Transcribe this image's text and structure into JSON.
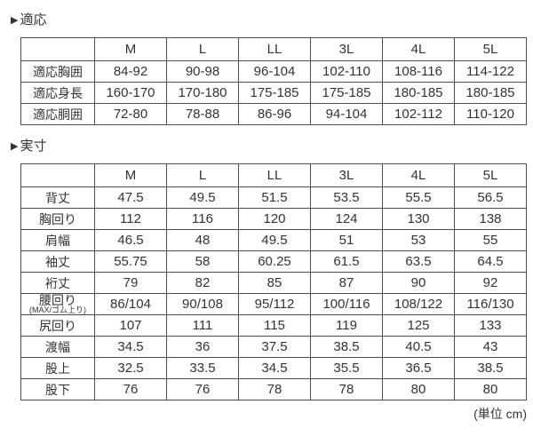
{
  "bullet": "▶",
  "unit_note": "(単位 cm)",
  "colors": {
    "background": "#ffffff",
    "text": "#333333",
    "border": "#4d4d4d"
  },
  "tables": [
    {
      "name": "fit",
      "title": "適応",
      "sizes": [
        "M",
        "L",
        "LL",
        "3L",
        "4L",
        "5L"
      ],
      "rows": [
        {
          "label": "適応胸囲",
          "values": [
            "84-92",
            "90-98",
            "96-104",
            "102-110",
            "108-116",
            "114-122"
          ]
        },
        {
          "label": "適応身長",
          "values": [
            "160-170",
            "170-180",
            "175-185",
            "175-185",
            "180-185",
            "180-185"
          ]
        },
        {
          "label": "適応胴囲",
          "values": [
            "72-80",
            "78-88",
            "86-96",
            "94-104",
            "102-112",
            "110-120"
          ]
        }
      ]
    },
    {
      "name": "actual",
      "title": "実寸",
      "sizes": [
        "M",
        "L",
        "LL",
        "3L",
        "4L",
        "5L"
      ],
      "rows": [
        {
          "label": "背丈",
          "values": [
            "47.5",
            "49.5",
            "51.5",
            "53.5",
            "55.5",
            "56.5"
          ]
        },
        {
          "label": "胸回り",
          "values": [
            "112",
            "116",
            "120",
            "124",
            "130",
            "138"
          ]
        },
        {
          "label": "肩幅",
          "values": [
            "46.5",
            "48",
            "49.5",
            "51",
            "53",
            "55"
          ]
        },
        {
          "label": "袖丈",
          "values": [
            "55.75",
            "58",
            "60.25",
            "61.5",
            "63.5",
            "64.5"
          ]
        },
        {
          "label": "裄丈",
          "values": [
            "79",
            "82",
            "85",
            "87",
            "90",
            "92"
          ]
        },
        {
          "label": "腰回り",
          "sublabel": "(MAX/ゴム上り)",
          "values": [
            "86/104",
            "90/108",
            "95/112",
            "100/116",
            "108/122",
            "116/130"
          ]
        },
        {
          "label": "尻回り",
          "values": [
            "107",
            "111",
            "115",
            "119",
            "125",
            "133"
          ]
        },
        {
          "label": "渡幅",
          "values": [
            "34.5",
            "36",
            "37.5",
            "38.5",
            "40.5",
            "43"
          ]
        },
        {
          "label": "股上",
          "values": [
            "32.5",
            "33.5",
            "34.5",
            "35.5",
            "36.5",
            "38.5"
          ]
        },
        {
          "label": "股下",
          "values": [
            "76",
            "76",
            "78",
            "78",
            "80",
            "80"
          ]
        }
      ]
    }
  ],
  "chart_data": [
    {
      "type": "table",
      "title": "適応",
      "columns": [
        "",
        "M",
        "L",
        "LL",
        "3L",
        "4L",
        "5L"
      ],
      "rows": [
        [
          "適応胸囲",
          "84-92",
          "90-98",
          "96-104",
          "102-110",
          "108-116",
          "114-122"
        ],
        [
          "適応身長",
          "160-170",
          "170-180",
          "175-185",
          "175-185",
          "180-185",
          "180-185"
        ],
        [
          "適応胴囲",
          "72-80",
          "78-88",
          "86-96",
          "94-104",
          "102-112",
          "110-120"
        ]
      ]
    },
    {
      "type": "table",
      "title": "実寸",
      "columns": [
        "",
        "M",
        "L",
        "LL",
        "3L",
        "4L",
        "5L"
      ],
      "rows": [
        [
          "背丈",
          "47.5",
          "49.5",
          "51.5",
          "53.5",
          "55.5",
          "56.5"
        ],
        [
          "胸回り",
          "112",
          "116",
          "120",
          "124",
          "130",
          "138"
        ],
        [
          "肩幅",
          "46.5",
          "48",
          "49.5",
          "51",
          "53",
          "55"
        ],
        [
          "袖丈",
          "55.75",
          "58",
          "60.25",
          "61.5",
          "63.5",
          "64.5"
        ],
        [
          "裄丈",
          "79",
          "82",
          "85",
          "87",
          "90",
          "92"
        ],
        [
          "腰回り(MAX/ゴム上り)",
          "86/104",
          "90/108",
          "95/112",
          "100/116",
          "108/122",
          "116/130"
        ],
        [
          "尻回り",
          "107",
          "111",
          "115",
          "119",
          "125",
          "133"
        ],
        [
          "渡幅",
          "34.5",
          "36",
          "37.5",
          "38.5",
          "40.5",
          "43"
        ],
        [
          "股上",
          "32.5",
          "33.5",
          "34.5",
          "35.5",
          "36.5",
          "38.5"
        ],
        [
          "股下",
          "76",
          "76",
          "78",
          "78",
          "80",
          "80"
        ]
      ],
      "unit": "cm"
    }
  ]
}
